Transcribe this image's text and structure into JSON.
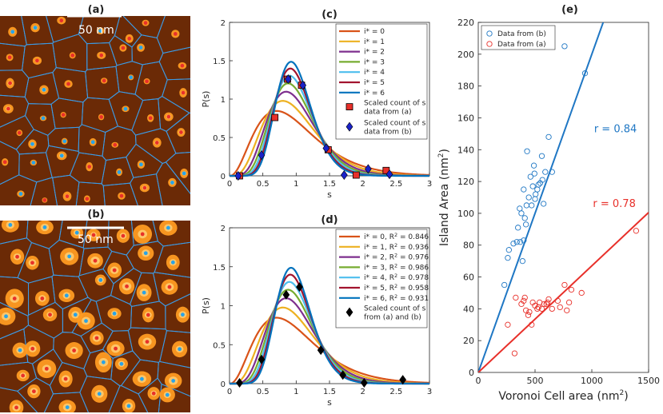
{
  "colors": {
    "i0": "#d95319",
    "i1": "#edb120",
    "i2": "#7e2f8e",
    "i3": "#77ac30",
    "i4": "#4dbeee",
    "i5": "#a2142f",
    "i6": "#0072bd",
    "voronoi": "#3c9be6",
    "dataB": "#1f77c4",
    "dataA": "#e8302a",
    "surface": "#6b2a06",
    "island": "#ff9b22"
  },
  "panel_a": {
    "label": "(a)",
    "scale_bar": "50 nm"
  },
  "panel_b": {
    "label": "(b)",
    "scale_bar": "50 nm"
  },
  "chart_data": [
    {
      "id": "c",
      "type": "line",
      "title": "(c)",
      "xlabel": "s",
      "ylabel": "P(s)",
      "xlim": [
        0,
        3
      ],
      "ylim": [
        0,
        2
      ],
      "xticks": [
        0,
        0.5,
        1,
        1.5,
        2,
        2.5,
        3
      ],
      "yticks": [
        0,
        0.5,
        1,
        1.5,
        2
      ],
      "series": [
        {
          "name": "i* = 0",
          "i": 0,
          "color_key": "i0"
        },
        {
          "name": "i* = 1",
          "i": 1,
          "color_key": "i1"
        },
        {
          "name": "i* = 2",
          "i": 2,
          "color_key": "i2"
        },
        {
          "name": "i* = 3",
          "i": 3,
          "color_key": "i3"
        },
        {
          "name": "i* = 4",
          "i": 4,
          "color_key": "i4"
        },
        {
          "name": "i* = 5",
          "i": 5,
          "color_key": "i5"
        },
        {
          "name": "i* = 6",
          "i": 6,
          "color_key": "i6"
        }
      ],
      "scatter": [
        {
          "name": "Scaled count of s data from (a)",
          "marker": "square",
          "color": "#e8302a",
          "points": [
            [
              0.15,
              0
            ],
            [
              0.68,
              0.76
            ],
            [
              0.87,
              1.26
            ],
            [
              1.08,
              1.18
            ],
            [
              1.48,
              0.34
            ],
            [
              1.9,
              0.01
            ],
            [
              2.35,
              0.07
            ]
          ]
        },
        {
          "name": "Scaled count of s data from (b)",
          "marker": "diamond",
          "color": "#1a22c8",
          "points": [
            [
              0.13,
              0
            ],
            [
              0.48,
              0.27
            ],
            [
              0.88,
              1.26
            ],
            [
              1.1,
              1.18
            ],
            [
              1.45,
              0.36
            ],
            [
              1.72,
              0.01
            ],
            [
              2.08,
              0.09
            ],
            [
              2.4,
              0.02
            ]
          ]
        }
      ]
    },
    {
      "id": "d",
      "type": "line",
      "title": "(d)",
      "xlabel": "s",
      "ylabel": "P(s)",
      "xlim": [
        0,
        3
      ],
      "ylim": [
        0,
        2
      ],
      "xticks": [
        0,
        0.5,
        1,
        1.5,
        2,
        2.5,
        3
      ],
      "yticks": [
        0,
        0.5,
        1,
        1.5,
        2
      ],
      "series": [
        {
          "name": "i* = 0, R",
          "r2": " = 0.846",
          "i": 0,
          "color_key": "i0"
        },
        {
          "name": "i* = 1, R",
          "r2": " = 0.936",
          "i": 1,
          "color_key": "i1"
        },
        {
          "name": "i* = 2, R",
          "r2": " = 0.976",
          "i": 2,
          "color_key": "i2"
        },
        {
          "name": "i* = 3, R",
          "r2": " = 0.986",
          "i": 3,
          "color_key": "i3"
        },
        {
          "name": "i* = 4, R",
          "r2": " = 0.978",
          "i": 4,
          "color_key": "i4"
        },
        {
          "name": "i* = 5, R",
          "r2": " = 0.958",
          "i": 5,
          "color_key": "i5"
        },
        {
          "name": "i* = 6, R",
          "r2": " = 0.931",
          "i": 6,
          "color_key": "i6"
        }
      ],
      "scatter": [
        {
          "name": "Scaled count of s from (a) and (b)",
          "marker": "diamond",
          "color": "#000000",
          "points": [
            [
              0.15,
              0.01
            ],
            [
              0.48,
              0.31
            ],
            [
              0.85,
              1.14
            ],
            [
              1.05,
              1.24
            ],
            [
              1.37,
              0.43
            ],
            [
              1.7,
              0.11
            ],
            [
              2.02,
              0.01
            ],
            [
              2.6,
              0.05
            ]
          ]
        }
      ]
    },
    {
      "id": "e",
      "type": "scatter",
      "title": "(e)",
      "xlabel": "Voronoi Cell area (nm",
      "ylabel": "Island Area (nm",
      "xlim": [
        0,
        1500
      ],
      "ylim": [
        0,
        220
      ],
      "xticks": [
        0,
        500,
        1000,
        1500
      ],
      "yticks": [
        0,
        20,
        40,
        60,
        80,
        100,
        120,
        140,
        160,
        180,
        200,
        220
      ],
      "series": [
        {
          "name": "Data from (b)",
          "color_key": "dataB",
          "fit_slope": 0.2,
          "r_label": "r = 0.84",
          "points": [
            [
              230,
              55
            ],
            [
              260,
              72
            ],
            [
              270,
              77
            ],
            [
              310,
              81
            ],
            [
              340,
              82
            ],
            [
              350,
              91
            ],
            [
              365,
              103
            ],
            [
              370,
              82
            ],
            [
              380,
              100
            ],
            [
              390,
              70
            ],
            [
              400,
              115
            ],
            [
              400,
              83
            ],
            [
              410,
              97
            ],
            [
              420,
              93
            ],
            [
              425,
              105
            ],
            [
              430,
              139
            ],
            [
              445,
              110
            ],
            [
              460,
              123
            ],
            [
              470,
              105
            ],
            [
              480,
              117
            ],
            [
              490,
              130
            ],
            [
              495,
              125
            ],
            [
              500,
              109
            ],
            [
              505,
              112
            ],
            [
              520,
              115
            ],
            [
              530,
              118
            ],
            [
              545,
              119
            ],
            [
              560,
              136
            ],
            [
              565,
              121
            ],
            [
              575,
              106
            ],
            [
              590,
              126
            ],
            [
              620,
              148
            ],
            [
              650,
              126
            ],
            [
              760,
              205
            ],
            [
              940,
              188
            ]
          ]
        },
        {
          "name": "Data from (a)",
          "color_key": "dataA",
          "fit_slope": 0.067,
          "r_label": "r = 0.78",
          "points": [
            [
              260,
              30
            ],
            [
              320,
              12
            ],
            [
              330,
              47
            ],
            [
              380,
              43
            ],
            [
              400,
              45
            ],
            [
              410,
              47
            ],
            [
              420,
              39
            ],
            [
              440,
              36
            ],
            [
              450,
              38
            ],
            [
              470,
              30
            ],
            [
              480,
              44
            ],
            [
              500,
              42
            ],
            [
              520,
              40
            ],
            [
              530,
              41
            ],
            [
              540,
              44
            ],
            [
              560,
              40
            ],
            [
              580,
              43
            ],
            [
              600,
              43
            ],
            [
              610,
              44
            ],
            [
              620,
              46
            ],
            [
              650,
              40
            ],
            [
              700,
              45
            ],
            [
              720,
              41
            ],
            [
              760,
              55
            ],
            [
              780,
              39
            ],
            [
              800,
              44
            ],
            [
              820,
              52
            ],
            [
              910,
              50
            ],
            [
              1390,
              89
            ]
          ]
        }
      ]
    }
  ]
}
